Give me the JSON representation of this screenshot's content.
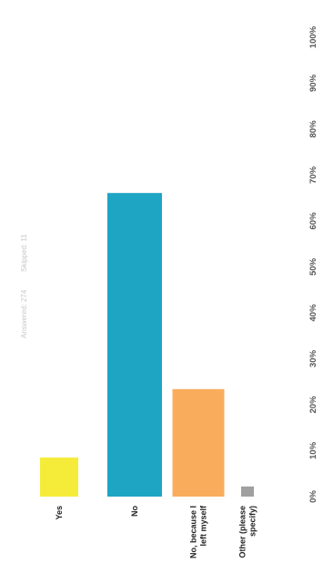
{
  "header": {
    "answered": "Answered: 274",
    "skipped": "Skipped: 11"
  },
  "chart_data": {
    "type": "bar",
    "orientation": "horizontal",
    "rotated_90_ccw": true,
    "categories": [
      "Yes",
      "No",
      "No, because I left myself",
      "Other (please specify)"
    ],
    "category_lines": [
      [
        "Yes"
      ],
      [
        "No"
      ],
      [
        "No, because I",
        "left myself"
      ],
      [
        "Other (please",
        "specify)"
      ]
    ],
    "values": [
      8.5,
      66.1,
      23.4,
      2.2
    ],
    "colors": [
      "#f5ec3a",
      "#1ea5c4",
      "#f9ad5c",
      "#a0a0a0"
    ],
    "xlim": [
      0,
      100
    ],
    "ticks": [
      "0%",
      "10%",
      "20%",
      "30%",
      "40%",
      "50%",
      "60%",
      "70%",
      "80%",
      "90%",
      "100%"
    ],
    "grid": false,
    "title": "",
    "xlabel": "",
    "ylabel": ""
  }
}
